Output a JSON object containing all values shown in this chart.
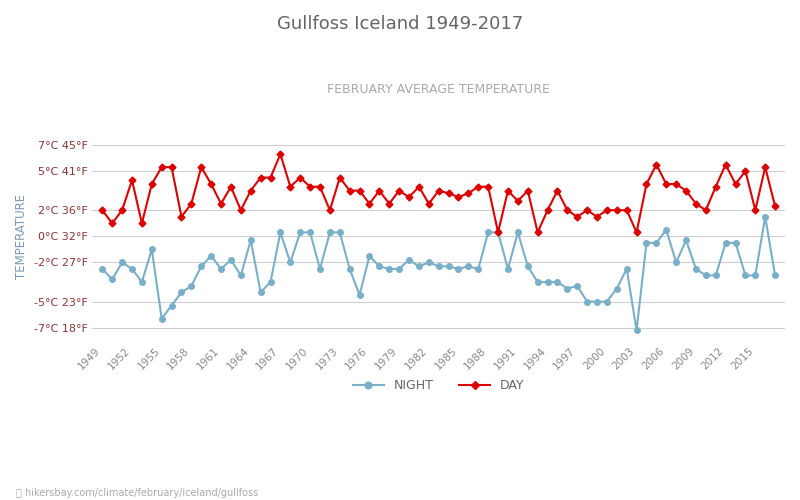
{
  "title": "Gullfoss Iceland 1949-2017",
  "subtitle": "FEBRUARY AVERAGE TEMPERATURE",
  "ylabel": "TEMPERATURE",
  "title_color": "#666666",
  "subtitle_color": "#aaaaaa",
  "ylabel_color": "#7a9ab5",
  "background_color": "#ffffff",
  "grid_color": "#cccccc",
  "years": [
    1949,
    1950,
    1951,
    1952,
    1953,
    1954,
    1955,
    1956,
    1957,
    1958,
    1959,
    1960,
    1961,
    1962,
    1963,
    1964,
    1965,
    1966,
    1967,
    1968,
    1969,
    1970,
    1971,
    1972,
    1973,
    1974,
    1975,
    1976,
    1977,
    1978,
    1979,
    1980,
    1981,
    1982,
    1983,
    1984,
    1985,
    1986,
    1987,
    1988,
    1989,
    1990,
    1991,
    1992,
    1993,
    1994,
    1995,
    1996,
    1997,
    1998,
    1999,
    2000,
    2001,
    2002,
    2003,
    2004,
    2005,
    2006,
    2007,
    2008,
    2009,
    2010,
    2011,
    2012,
    2013,
    2014,
    2015,
    2016,
    2017
  ],
  "day_temps": [
    2.0,
    1.0,
    2.0,
    4.3,
    1.0,
    4.0,
    5.3,
    5.3,
    1.5,
    2.5,
    5.3,
    4.0,
    2.5,
    3.8,
    2.0,
    3.5,
    4.5,
    4.5,
    6.3,
    3.8,
    4.5,
    3.8,
    3.8,
    2.0,
    4.5,
    3.5,
    3.5,
    2.5,
    3.5,
    2.5,
    3.5,
    3.0,
    3.8,
    2.5,
    3.5,
    3.3,
    3.0,
    3.3,
    3.8,
    3.8,
    0.3,
    3.5,
    2.7,
    3.5,
    0.3,
    2.0,
    3.5,
    2.0,
    1.5,
    2.0,
    1.5,
    2.0,
    2.0,
    2.0,
    0.3,
    4.0,
    5.5,
    4.0,
    4.0,
    3.5,
    2.5,
    2.0,
    3.8,
    5.5,
    4.0,
    5.0,
    2.0,
    5.3,
    2.3
  ],
  "night_temps": [
    -2.5,
    -3.3,
    -2.0,
    -2.5,
    -3.5,
    -1.0,
    -6.3,
    -5.3,
    -4.3,
    -3.8,
    -2.3,
    -1.5,
    -2.5,
    -1.8,
    -3.0,
    -0.3,
    -4.3,
    -3.5,
    0.3,
    -2.0,
    0.3,
    0.3,
    -2.5,
    0.3,
    0.3,
    -2.5,
    -4.5,
    -1.5,
    -2.3,
    -2.5,
    -2.5,
    -1.8,
    -2.3,
    -2.0,
    -2.3,
    -2.3,
    -2.5,
    -2.3,
    -2.5,
    0.3,
    0.3,
    -2.5,
    0.3,
    -2.3,
    -3.5,
    -3.5,
    -3.5,
    -4.0,
    -3.8,
    -5.0,
    -5.0,
    -5.0,
    -4.0,
    -2.5,
    -7.2,
    -0.5,
    -0.5,
    0.5,
    -2.0,
    -0.3,
    -2.5,
    -3.0,
    -3.0,
    -0.5,
    -0.5,
    -3.0,
    -3.0,
    1.5,
    -3.0
  ],
  "day_color": "#dd0000",
  "night_color": "#7aafc8",
  "day_marker": "D",
  "night_marker": "o",
  "day_markersize": 3.5,
  "night_markersize": 4,
  "line_width": 1.5,
  "ylim": [
    -8,
    8
  ],
  "yticks_c": [
    -7,
    -5,
    -2,
    0,
    2,
    5,
    7
  ],
  "yticks_f": [
    18,
    23,
    27,
    32,
    36,
    41,
    45
  ],
  "xtick_years": [
    1949,
    1952,
    1955,
    1958,
    1961,
    1964,
    1967,
    1970,
    1973,
    1976,
    1979,
    1982,
    1985,
    1988,
    1991,
    1994,
    1997,
    2000,
    2003,
    2006,
    2009,
    2012,
    2015
  ],
  "footer_text": "hikersbay.com/climate/february/iceland/gullfoss",
  "legend_night": "NIGHT",
  "legend_day": "DAY",
  "xmin": 1948,
  "xmax": 2018
}
